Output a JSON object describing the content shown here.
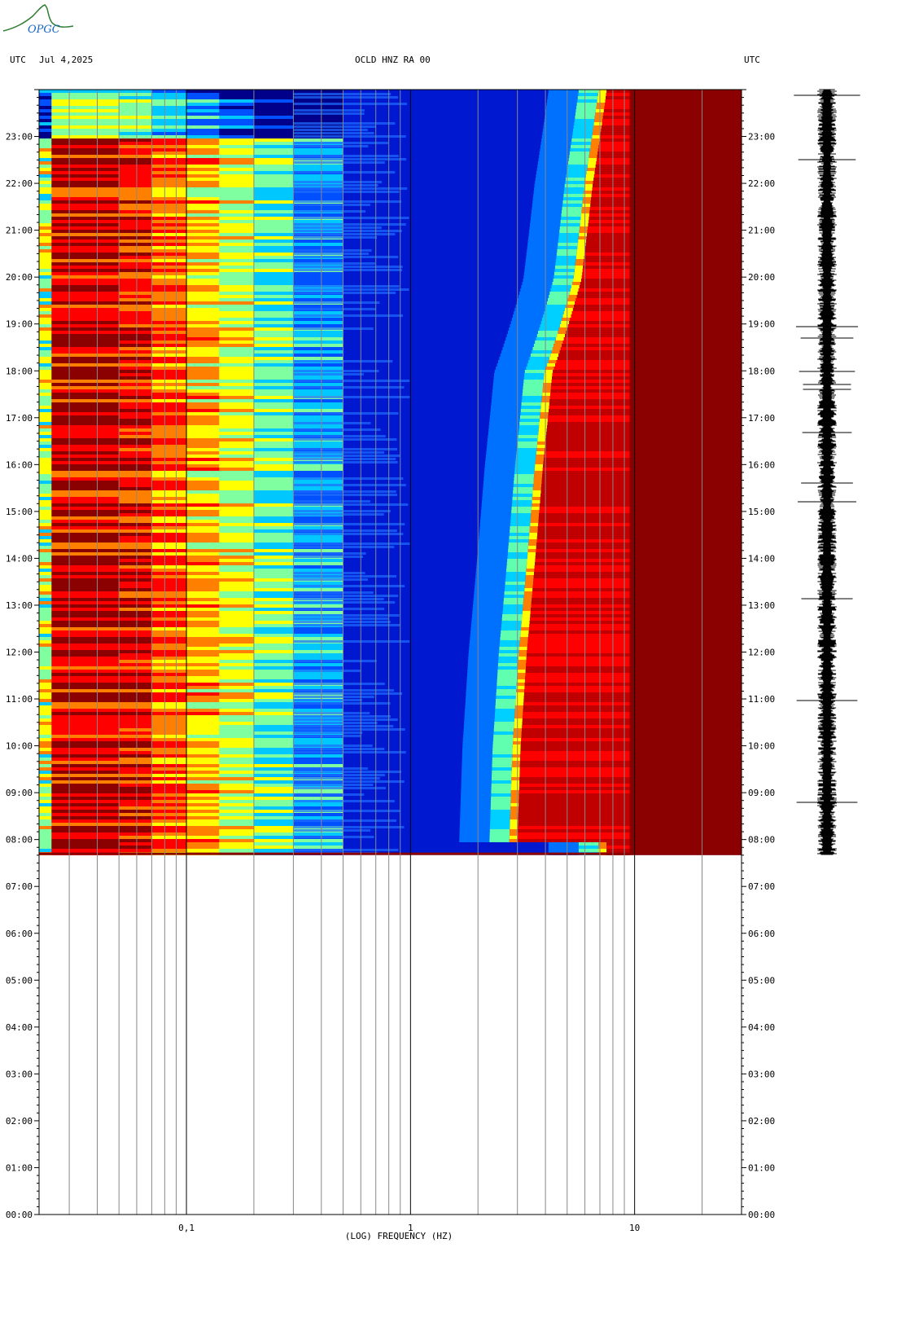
{
  "header": {
    "utc_left": "UTC",
    "date": "Jul 4,2025",
    "station": "OCLD HNZ RA 00",
    "utc_right": "UTC"
  },
  "logo": {
    "text": "OPGC",
    "color": "#2e7d32"
  },
  "chart_data": {
    "type": "heatmap",
    "title": "OCLD HNZ RA 00",
    "xlabel": "(LOG) FREQUENCY (HZ)",
    "ylabel": "UTC",
    "x_scale": "log",
    "xlim": [
      0.022,
      30
    ],
    "x_major_ticks": [
      0.1,
      1,
      10
    ],
    "x_tick_labels": [
      "0,1",
      "1",
      "10"
    ],
    "x_minor_lines": [
      0.03,
      0.04,
      0.05,
      0.06,
      0.07,
      0.08,
      0.09,
      0.2,
      0.3,
      0.4,
      0.5,
      0.6,
      0.7,
      0.8,
      0.9,
      2,
      3,
      4,
      5,
      6,
      7,
      8,
      9,
      20
    ],
    "y_hours": [
      23,
      22,
      21,
      20,
      19,
      18,
      17,
      16,
      15,
      14,
      13,
      12,
      11,
      10,
      9,
      8,
      7,
      6,
      5,
      4,
      3,
      2,
      1,
      0
    ],
    "y_tick_labels": [
      "23:00",
      "22:00",
      "21:00",
      "20:00",
      "19:00",
      "18:00",
      "17:00",
      "16:00",
      "15:00",
      "14:00",
      "13:00",
      "12:00",
      "11:00",
      "10:00",
      "09:00",
      "08:00",
      "07:00",
      "06:00",
      "05:00",
      "04:00",
      "03:00",
      "02:00",
      "01:00",
      "00:00"
    ],
    "ylim_hours": [
      0,
      24
    ],
    "data_start_hour": 7.67,
    "data_end_hour": 24,
    "colormap": [
      "#00008b",
      "#0050ff",
      "#00c8ff",
      "#7fffa0",
      "#ffff00",
      "#ff8000",
      "#ff0000",
      "#8b0000"
    ],
    "edge_frequency_hz": [
      {
        "hour": 8.0,
        "freq": 3.0
      },
      {
        "hour": 10.0,
        "freq": 3.1
      },
      {
        "hour": 12.0,
        "freq": 3.3
      },
      {
        "hour": 14.0,
        "freq": 3.6
      },
      {
        "hour": 16.0,
        "freq": 3.9
      },
      {
        "hour": 18.0,
        "freq": 4.3
      },
      {
        "hour": 20.0,
        "freq": 5.8
      },
      {
        "hour": 22.0,
        "freq": 6.5
      },
      {
        "hour": 24.0,
        "freq": 7.5
      }
    ],
    "saturation_frequency_hz": 9.5
  }
}
